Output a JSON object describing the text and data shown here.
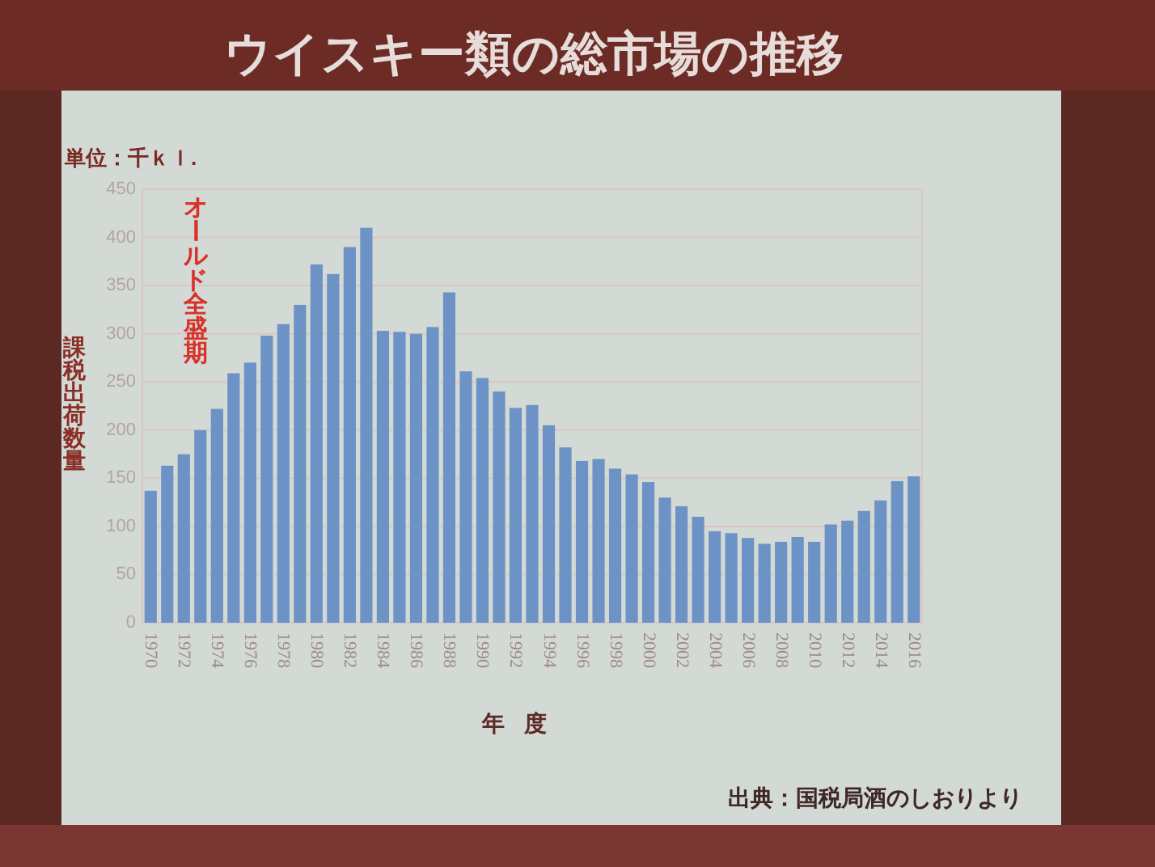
{
  "chart_data": {
    "type": "bar",
    "title": "ウイスキー類の総市場の推移",
    "xlabel": "年度",
    "ylabel": "課税出荷数量",
    "annotations": [
      "単位：千ｋｌ.",
      "オールド全盛期",
      "出典：国税局酒のしおりより"
    ],
    "categories": [
      "1970",
      null,
      "1972",
      null,
      "1974",
      null,
      "1976",
      null,
      "1978",
      null,
      "1980",
      null,
      "1982",
      null,
      "1984",
      null,
      "1986",
      null,
      "1988",
      null,
      "1990",
      null,
      "1992",
      null,
      "1994",
      null,
      "1996",
      null,
      "1998",
      null,
      "2000",
      null,
      "2002",
      null,
      "2004",
      null,
      "2006",
      null,
      "2008",
      null,
      "2010",
      null,
      "2012",
      null,
      "2014",
      null,
      "2016"
    ],
    "values": [
      137,
      163,
      175,
      200,
      222,
      259,
      270,
      298,
      310,
      330,
      372,
      362,
      390,
      410,
      303,
      302,
      300,
      307,
      343,
      261,
      254,
      240,
      223,
      226,
      205,
      182,
      168,
      170,
      160,
      154,
      146,
      130,
      121,
      110,
      95,
      93,
      88,
      82,
      84,
      89,
      84,
      102,
      106,
      116,
      127,
      147,
      152
    ],
    "color": "#6d93c6",
    "ylim": [
      0,
      450
    ],
    "yticks": [
      0,
      50,
      100,
      150,
      200,
      250,
      300,
      350,
      400,
      450
    ],
    "grid": "y"
  }
}
